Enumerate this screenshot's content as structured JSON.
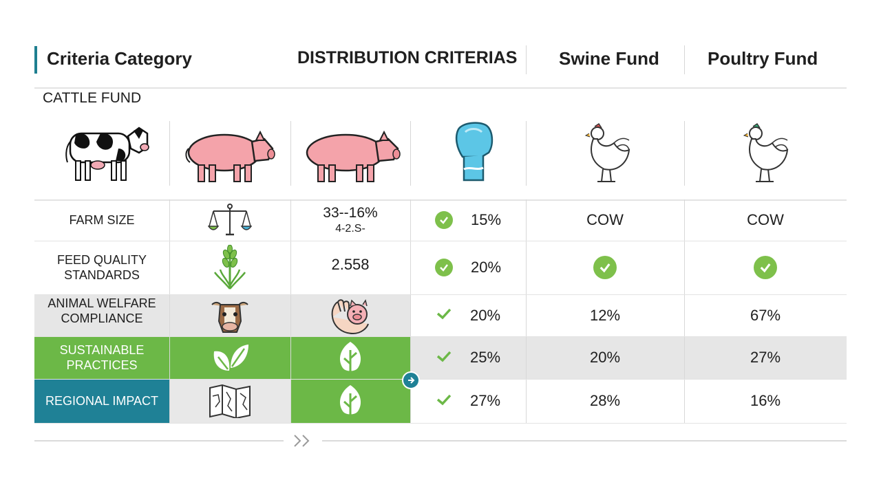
{
  "header": {
    "criteria_category": "Criteria Category",
    "distribution_criterias": "DISTRIBUTION CRITERIAS",
    "swine_fund": "Swine Fund",
    "poultry_fund": "Poultry Fund"
  },
  "subheader": {
    "cattle_fund": "CATTLE FUND"
  },
  "animals": [
    "cow-icon",
    "pig-icon",
    "pig-icon",
    "feed-sack-icon",
    "chicken-icon",
    "chicken-icon"
  ],
  "rows": [
    {
      "label": "FARM SIZE",
      "icon": "balance-scale-icon",
      "col3_line1": "33--16%",
      "col3_line2": "4-2.S-",
      "dist": "15%",
      "swine": "COW",
      "poultry": "COW"
    },
    {
      "label": "FEED QUALITY STANDARDS",
      "label_line1": "FEED QUALITY",
      "label_line2": "STANDARDS",
      "icon": "wheat-icon",
      "col3": "2.558",
      "dist": "20%",
      "swine_icon": "check-circle-icon",
      "poultry_icon": "check-circle-icon"
    },
    {
      "label_line1": "ANIMAL WELFARE",
      "label_line2": "COMPLIANCE",
      "icon": "cow-face-icon",
      "col3_icon": "hand-pig-icon",
      "dist": "20%",
      "swine": "12%",
      "poultry": "67%"
    },
    {
      "label_line1": "SUSTAINABLE",
      "label_line2": "PRACTICES",
      "icon": "leaves-icon",
      "col3_icon": "leaf-icon",
      "dist": "25%",
      "swine": "20%",
      "poultry": "27%"
    },
    {
      "label": "REGIONAL IMPACT",
      "icon": "map-icon",
      "col3_icon": "leaf-icon",
      "dist": "27%",
      "swine": "28%",
      "poultry": "16%"
    }
  ],
  "pagination": {
    "next_icon": "double-chevron-right-icon"
  },
  "colors": {
    "accent": "#1f7f90",
    "green": "#6cb847",
    "teal": "#1f8196",
    "gray": "#e6e6e6",
    "check": "#7ec04b"
  }
}
